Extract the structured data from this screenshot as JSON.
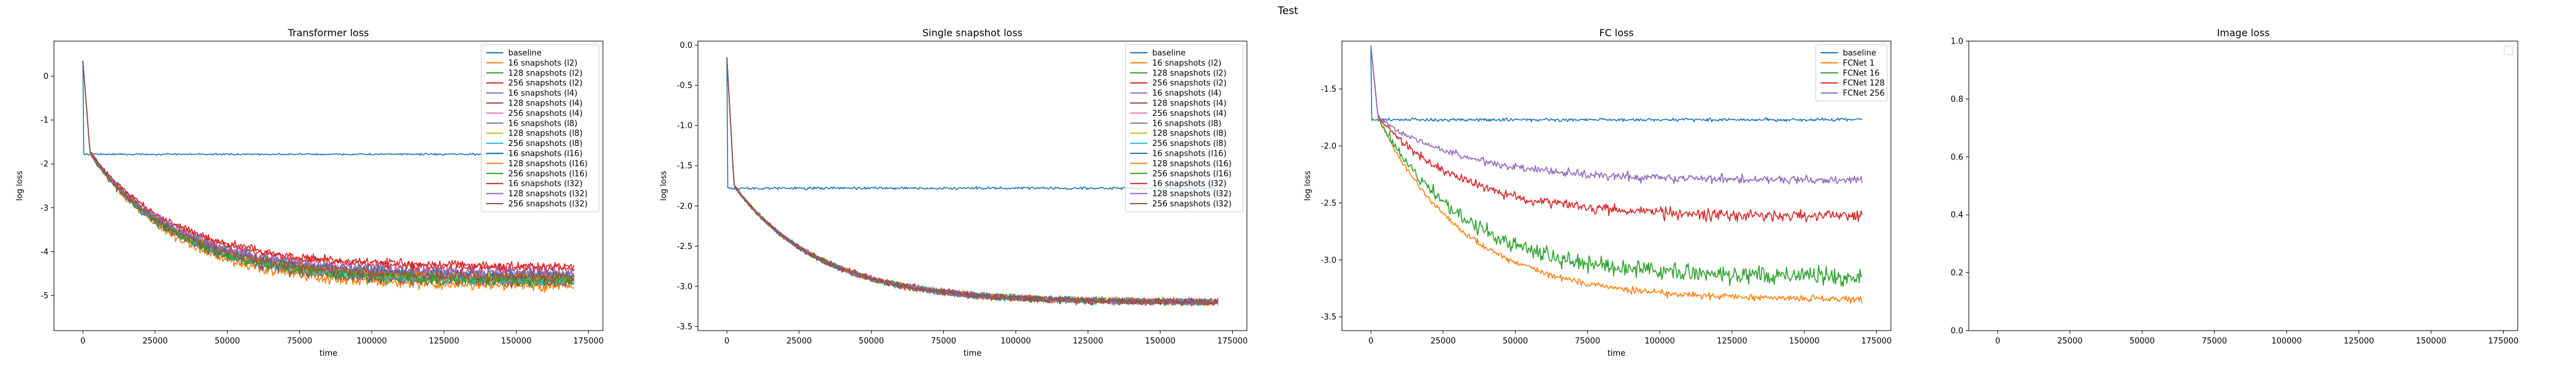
{
  "suptitle": "Test",
  "colors": [
    "#1f77b4",
    "#ff7f0e",
    "#2ca02c",
    "#d62728",
    "#9467bd",
    "#8c564b",
    "#e377c2",
    "#7f7f7f",
    "#bcbd22",
    "#17becf"
  ],
  "chart_data": [
    {
      "type": "line",
      "title": "Transformer loss",
      "xlabel": "time",
      "ylabel": "log loss",
      "xlim": [
        -10000,
        180000
      ],
      "ylim": [
        -5.8,
        0.8
      ],
      "xticks": [
        0,
        25000,
        50000,
        75000,
        100000,
        125000,
        150000,
        175000
      ],
      "yticks": [
        -5,
        -4,
        -3,
        -2,
        -1,
        0
      ],
      "legend_position": "top-right",
      "series": [
        {
          "name": "baseline",
          "color": "#1f77b4",
          "kind": "flat",
          "level": -1.78,
          "noise": 0.03
        },
        {
          "name": "16 snapshots (l2)",
          "color": "#ff7f0e",
          "kind": "decay",
          "plateau": -4.8,
          "noise": 0.18
        },
        {
          "name": "128 snapshots (l2)",
          "color": "#2ca02c",
          "kind": "decay",
          "plateau": -4.7,
          "noise": 0.18
        },
        {
          "name": "256 snapshots (l2)",
          "color": "#d62728",
          "kind": "decay",
          "plateau": -4.4,
          "noise": 0.15
        },
        {
          "name": "16 snapshots (l4)",
          "color": "#9467bd",
          "kind": "decay",
          "plateau": -4.6,
          "noise": 0.2
        },
        {
          "name": "128 snapshots (l4)",
          "color": "#8c564b",
          "kind": "decay",
          "plateau": -4.7,
          "noise": 0.2
        },
        {
          "name": "256 snapshots (l4)",
          "color": "#e377c2",
          "kind": "decay",
          "plateau": -4.55,
          "noise": 0.18
        },
        {
          "name": "16 snapshots (l8)",
          "color": "#7f7f7f",
          "kind": "decay",
          "plateau": -4.65,
          "noise": 0.18
        },
        {
          "name": "128 snapshots (l8)",
          "color": "#bcbd22",
          "kind": "decay",
          "plateau": -4.6,
          "noise": 0.18
        },
        {
          "name": "256 snapshots (l8)",
          "color": "#17becf",
          "kind": "decay",
          "plateau": -4.65,
          "noise": 0.18
        },
        {
          "name": "16 snapshots (l16)",
          "color": "#1f77b4",
          "kind": "decay",
          "plateau": -4.55,
          "noise": 0.18
        },
        {
          "name": "128 snapshots (l16)",
          "color": "#ff7f0e",
          "kind": "decay",
          "plateau": -4.6,
          "noise": 0.18
        },
        {
          "name": "256 snapshots (l16)",
          "color": "#2ca02c",
          "kind": "decay",
          "plateau": -4.65,
          "noise": 0.18
        },
        {
          "name": "16 snapshots (l32)",
          "color": "#d62728",
          "kind": "decay",
          "plateau": -4.35,
          "noise": 0.15
        },
        {
          "name": "128 snapshots (l32)",
          "color": "#9467bd",
          "kind": "decay",
          "plateau": -4.5,
          "noise": 0.18
        },
        {
          "name": "256 snapshots (l32)",
          "color": "#8c564b",
          "kind": "decay",
          "plateau": -4.6,
          "noise": 0.2
        }
      ]
    },
    {
      "type": "line",
      "title": "Single snapshot loss",
      "xlabel": "time",
      "ylabel": "log loss",
      "xlim": [
        -10000,
        180000
      ],
      "ylim": [
        -3.55,
        0.05
      ],
      "xticks": [
        0,
        25000,
        50000,
        75000,
        100000,
        125000,
        150000,
        175000
      ],
      "yticks": [
        -3.5,
        -3.0,
        -2.5,
        -2.0,
        -1.5,
        -1.0,
        -0.5,
        0.0
      ],
      "legend_position": "top-right",
      "series": [
        {
          "name": "baseline",
          "color": "#1f77b4",
          "kind": "flat",
          "level": -1.78,
          "noise": 0.025
        },
        {
          "name": "16 snapshots (l2)",
          "color": "#ff7f0e",
          "kind": "decay",
          "plateau": -3.2,
          "noise": 0.06
        },
        {
          "name": "128 snapshots (l2)",
          "color": "#2ca02c",
          "kind": "decay",
          "plateau": -3.2,
          "noise": 0.06
        },
        {
          "name": "256 snapshots (l2)",
          "color": "#d62728",
          "kind": "decay",
          "plateau": -3.2,
          "noise": 0.06
        },
        {
          "name": "16 snapshots (l4)",
          "color": "#9467bd",
          "kind": "decay",
          "plateau": -3.2,
          "noise": 0.06
        },
        {
          "name": "128 snapshots (l4)",
          "color": "#8c564b",
          "kind": "decay",
          "plateau": -3.2,
          "noise": 0.06
        },
        {
          "name": "256 snapshots (l4)",
          "color": "#e377c2",
          "kind": "decay",
          "plateau": -3.2,
          "noise": 0.06
        },
        {
          "name": "16 snapshots (l8)",
          "color": "#7f7f7f",
          "kind": "decay",
          "plateau": -3.2,
          "noise": 0.06
        },
        {
          "name": "128 snapshots (l8)",
          "color": "#bcbd22",
          "kind": "decay",
          "plateau": -3.2,
          "noise": 0.06
        },
        {
          "name": "256 snapshots (l8)",
          "color": "#17becf",
          "kind": "decay",
          "plateau": -3.2,
          "noise": 0.06
        },
        {
          "name": "16 snapshots (l16)",
          "color": "#1f77b4",
          "kind": "decay",
          "plateau": -3.2,
          "noise": 0.06
        },
        {
          "name": "128 snapshots (l16)",
          "color": "#ff7f0e",
          "kind": "decay",
          "plateau": -3.2,
          "noise": 0.06
        },
        {
          "name": "256 snapshots (l16)",
          "color": "#2ca02c",
          "kind": "decay",
          "plateau": -3.2,
          "noise": 0.06
        },
        {
          "name": "16 snapshots (l32)",
          "color": "#d62728",
          "kind": "decay",
          "plateau": -3.2,
          "noise": 0.06
        },
        {
          "name": "128 snapshots (l32)",
          "color": "#9467bd",
          "kind": "decay",
          "plateau": -3.2,
          "noise": 0.06
        },
        {
          "name": "256 snapshots (l32)",
          "color": "#8c564b",
          "kind": "decay",
          "plateau": -3.2,
          "noise": 0.06
        }
      ]
    },
    {
      "type": "line",
      "title": "FC loss",
      "xlabel": "time",
      "ylabel": "log loss",
      "xlim": [
        -10000,
        180000
      ],
      "ylim": [
        -3.62,
        -1.08
      ],
      "xticks": [
        0,
        25000,
        50000,
        75000,
        100000,
        125000,
        150000,
        175000
      ],
      "yticks": [
        -3.5,
        -3.0,
        -2.5,
        -2.0,
        -1.5
      ],
      "legend_position": "top-right",
      "series": [
        {
          "name": "baseline",
          "color": "#1f77b4",
          "kind": "flat",
          "level": -1.77,
          "noise": 0.02
        },
        {
          "name": "FCNet 1",
          "color": "#ff7f0e",
          "kind": "decay",
          "plateau": -3.35,
          "noise": 0.05
        },
        {
          "name": "FCNet 16",
          "color": "#2ca02c",
          "kind": "decay",
          "plateau": -3.15,
          "noise": 0.12
        },
        {
          "name": "FCNet 128",
          "color": "#d62728",
          "kind": "decay",
          "plateau": -2.62,
          "noise": 0.08
        },
        {
          "name": "FCNet 256",
          "color": "#9467bd",
          "kind": "decay",
          "plateau": -2.3,
          "noise": 0.06
        }
      ]
    },
    {
      "type": "line",
      "title": "Image loss",
      "xlabel": "",
      "ylabel": "",
      "xlim": [
        -10000,
        180000
      ],
      "ylim": [
        0.0,
        1.0
      ],
      "xticks": [
        0,
        25000,
        50000,
        75000,
        100000,
        125000,
        150000,
        175000
      ],
      "yticks": [
        0.0,
        0.2,
        0.4,
        0.6,
        0.8,
        1.0
      ],
      "legend_position": "top-right",
      "series": []
    }
  ]
}
